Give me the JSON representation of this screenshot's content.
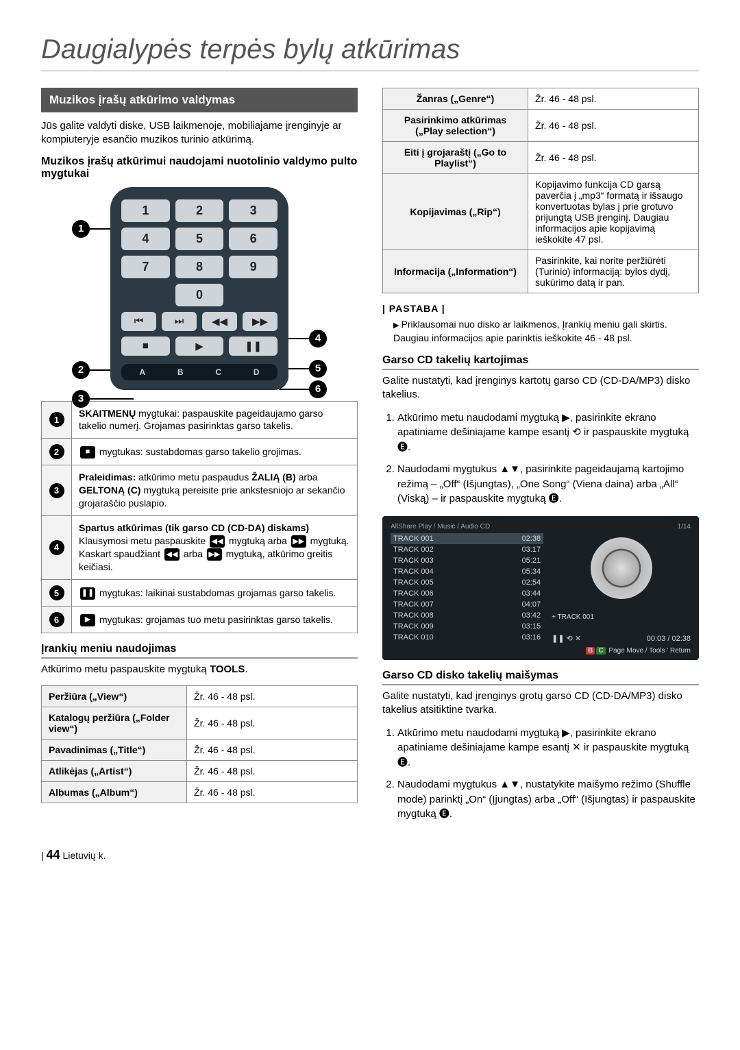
{
  "page_title": "Daugialypės terpės bylų atkūrimas",
  "section_header": "Muzikos įrašų atkūrimo valdymas",
  "intro": "Jūs galite valdyti diske, USB laikmenoje, mobiliajame įrenginyje ar kompiuteryje esančio muzikos turinio atkūrimą.",
  "subheading1": "Muzikos įrašų atkūrimui naudojami nuotolinio valdymo pulto mygtukai",
  "remote": {
    "numbers": [
      "1",
      "2",
      "3",
      "4",
      "5",
      "6",
      "7",
      "8",
      "9",
      "0"
    ],
    "row1": [
      "⏮",
      "⏭",
      "◀◀",
      "▶▶"
    ],
    "row2": [
      "■",
      "▶",
      "❚❚"
    ],
    "abcd": [
      "A",
      "B",
      "C",
      "D"
    ]
  },
  "callouts_left": [
    "1",
    "2",
    "3"
  ],
  "callouts_right": [
    "4",
    "5",
    "6"
  ],
  "desc_rows": [
    {
      "n": "1",
      "html": "<b>SKAITMENŲ</b> mygtukai: paspauskite pageidaujamo garso takelio numerį. Grojamas pasirinktas garso takelis."
    },
    {
      "n": "2",
      "html": "<span class='iconbox'>■</span> mygtukas: sustabdomas garso takelio grojimas."
    },
    {
      "n": "3",
      "html": "<b>Praleidimas:</b> atkūrimo metu paspaudus <b>ŽALIĄ (B)</b> arba <b>GELTONĄ (C)</b> mygtuką  pereisite prie ankstesniojo ar sekančio grojaraščio puslapio."
    },
    {
      "n": "4",
      "html": "<b>Spartus atkūrimas (tik garso CD (CD-DA) diskams)</b><br>Klausymosi metu paspauskite <span class='iconbox'>◀◀</span> mygtuką arba <span class='iconbox'>▶▶</span> mygtuką. Kaskart spaudžiant <span class='iconbox'>◀◀</span> arba <span class='iconbox'>▶▶</span> mygtuką, atkūrimo greitis keičiasi."
    },
    {
      "n": "5",
      "html": "<span class='iconbox'>❚❚</span> mygtukas: laikinai sustabdomas grojamas garso takelis."
    },
    {
      "n": "6",
      "html": "<span class='iconbox'>▶</span> mygtukas: grojamas tuo metu pasirinktas garso takelis."
    }
  ],
  "tools_heading": "Įrankių meniu naudojimas",
  "tools_intro": "Atkūrimo metu paspauskite mygtuką TOOLS.",
  "tools_rows_left": [
    {
      "k": "Peržiūra („View“)",
      "v": "Žr. 46 - 48 psl."
    },
    {
      "k": "Katalogų peržiūra („Folder view“)",
      "v": "Žr. 46 - 48 psl."
    },
    {
      "k": "Pavadinimas („Title“)",
      "v": "Žr. 46 - 48 psl."
    },
    {
      "k": "Atlikėjas („Artist“)",
      "v": "Žr. 46 - 48 psl."
    },
    {
      "k": "Albumas („Album“)",
      "v": "Žr. 46 - 48 psl."
    }
  ],
  "tools_rows_right": [
    {
      "k": "Žanras („Genre“)",
      "v": "Žr. 46 - 48 psl."
    },
    {
      "k": "Pasirinkimo atkūrimas („Play selection“)",
      "v": "Žr. 46 - 48 psl."
    },
    {
      "k": "Eiti į grojaraštį („Go to Playlist“)",
      "v": "Žr. 46 - 48 psl."
    },
    {
      "k": "Kopijavimas („Rip“)",
      "v": "Kopijavimo funkcija CD garsą paverčia į „mp3“ formatą ir išsaugo konvertuotas bylas į prie grotuvo prijungtą USB įrenginį. Daugiau informacijos apie kopijavimą ieškokite 47 psl."
    },
    {
      "k": "Informacija („Information“)",
      "v": "Pasirinkite, kai norite peržiūrėti (Turinio) informaciją: bylos dydį, sukūrimo datą ir pan."
    }
  ],
  "note_label": "| PASTABA |",
  "note_text": "Priklausomai nuo disko ar laikmenos, Įrankių meniu gali skirtis. Daugiau informacijos apie parinktis ieškokite 46 - 48 psl.",
  "repeat": {
    "heading": "Garso CD takelių kartojimas",
    "intro": "Galite nustatyti, kad įrenginys kartotų garso CD (CD-DA/MP3) disko takelius.",
    "steps": [
      "Atkūrimo metu naudodami mygtuką ▶, pasirinkite ekrano apatiniame dešiniajame kampe esantį ⟲ ir paspauskite mygtuką 🅔.",
      "Naudodami mygtukus ▲▼, pasirinkite pageidaujamą kartojimo režimą – „Off“ (Išjungtas), „One Song“ (Viena daina) arba „All“ (Viską) – ir paspauskite mygtuką 🅔."
    ]
  },
  "player": {
    "breadcrumb": "AllShare Play  / Music /  Audio CD",
    "page": "1/14",
    "tracks": [
      {
        "t": "TRACK 001",
        "d": "02:38",
        "sel": true
      },
      {
        "t": "TRACK 002",
        "d": "03:17"
      },
      {
        "t": "TRACK 003",
        "d": "05:21"
      },
      {
        "t": "TRACK 004",
        "d": "05:34"
      },
      {
        "t": "TRACK 005",
        "d": "02:54"
      },
      {
        "t": "TRACK 006",
        "d": "03:44"
      },
      {
        "t": "TRACK 007",
        "d": "04:07"
      },
      {
        "t": "TRACK 008",
        "d": "03:42"
      },
      {
        "t": "TRACK 009",
        "d": "03:15"
      },
      {
        "t": "TRACK 010",
        "d": "03:16"
      }
    ],
    "now": "+ TRACK 001",
    "time": "00:03 / 02:38",
    "controls": "❚❚   ⟲   ✕",
    "footer": "Page Move   /   Tools   '   Return"
  },
  "shuffle": {
    "heading": "Garso CD disko takelių maišymas",
    "intro": "Galite nustatyti, kad įrenginys grotų garso CD (CD-DA/MP3) disko takelius atsitiktine tvarka.",
    "steps": [
      "Atkūrimo metu naudodami mygtuką ▶, pasirinkite ekrano apatiniame dešiniajame kampe esantį ✕ ir paspauskite mygtuką 🅔.",
      "Naudodami mygtukus ▲▼, nustatykite maišymo režimo (Shuffle mode) parinktį „On“ (Įjungtas) arba „Off“ (Išjungtas) ir paspauskite mygtuką 🅔."
    ]
  },
  "footer": {
    "num": "44",
    "lang": "Lietuvių k."
  }
}
